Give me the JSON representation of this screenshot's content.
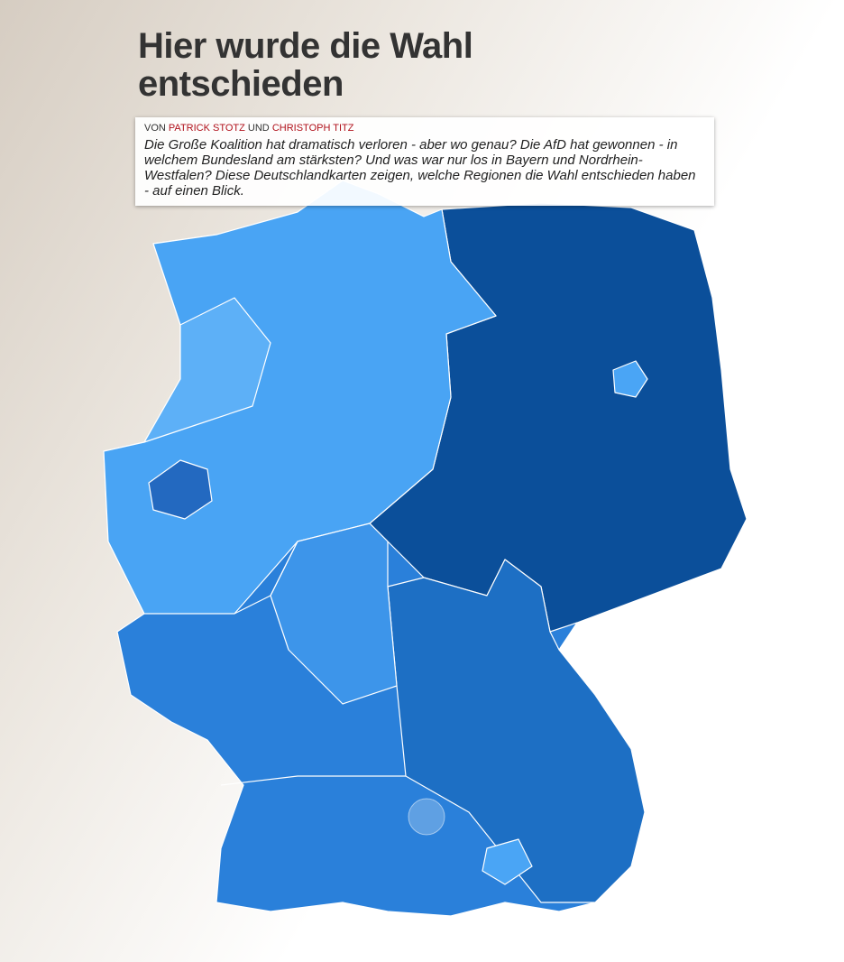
{
  "header": {
    "title": "Hier wurde die Wahl entschieden"
  },
  "byline": {
    "prefix": "VON",
    "author_1": "PATRICK STOTZ",
    "joiner": "UND",
    "author_2": "CHRISTOPH TITZ"
  },
  "intro": "Die Große Koalition hat dramatisch verloren - aber wo genau? Die AfD hat gewonnen - in welchem Bundesland am stärksten? Und was war nur los in Bayern und Nordrhein-Westfalen? Diese Deutschlandkarten zeigen, welche Regionen die Wahl entschieden haben - auf einen Blick."
}
